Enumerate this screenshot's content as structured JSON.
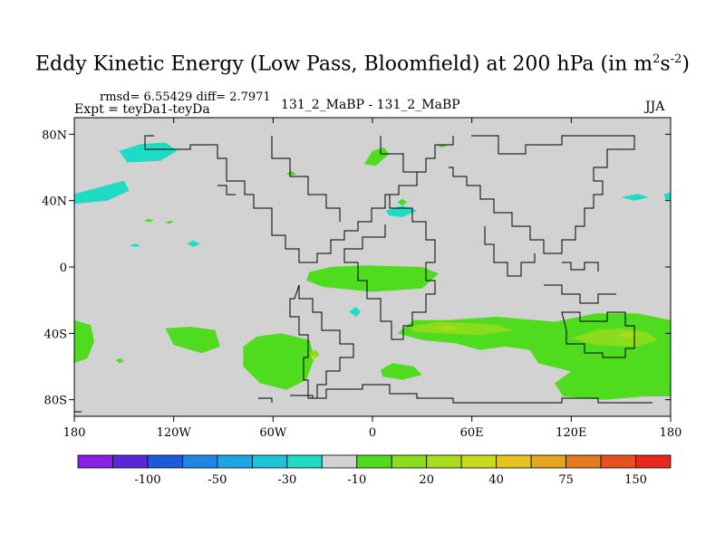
{
  "chart_data": {
    "type": "heatmap",
    "title_main": "Eddy Kinetic Energy (Low Pass, Bloomfield) at 200 hPa (in m",
    "title_sup1": "2",
    "title_mid": "s",
    "title_sup2": "-2",
    "title_end": ")",
    "stats_text": "rmsd= 6.55429 diff= 2.7971",
    "left_label": "Expt = teyDa1-teyDa",
    "center_label": "131_2_MaBP - 131_2_MaBP",
    "right_label": "JJA",
    "x_ticks": [
      {
        "value": -180,
        "label": "180"
      },
      {
        "value": -120,
        "label": "120W"
      },
      {
        "value": -60,
        "label": "60W"
      },
      {
        "value": 0,
        "label": "0"
      },
      {
        "value": 60,
        "label": "60E"
      },
      {
        "value": 120,
        "label": "120E"
      },
      {
        "value": 180,
        "label": "180"
      }
    ],
    "y_ticks": [
      {
        "value": 80,
        "label": "80N"
      },
      {
        "value": 40,
        "label": "40N"
      },
      {
        "value": 0,
        "label": "0"
      },
      {
        "value": -40,
        "label": "40S"
      },
      {
        "value": -80,
        "label": "80S"
      }
    ],
    "xlim": [
      -180,
      180
    ],
    "ylim": [
      -90,
      90
    ],
    "colorbar": {
      "colors": [
        "#8c1ee6",
        "#5a28dc",
        "#1e5adc",
        "#1e87e6",
        "#1ea5e6",
        "#1ec3dc",
        "#1edcc3",
        "#d2d2d2",
        "#50dc1e",
        "#8cdc1e",
        "#aadc1e",
        "#c8dc1e",
        "#e6c31e",
        "#e6a51e",
        "#e6781e",
        "#e6501e",
        "#e6281e"
      ],
      "tick_labels": [
        "-100",
        "-50",
        "-30",
        "-10",
        "20",
        "40",
        "75",
        "150"
      ],
      "tick_boundaries": [
        2,
        4,
        6,
        8,
        10,
        12,
        14,
        16
      ]
    },
    "regions": [
      {
        "name": "teal-north-pacific",
        "color": "#1edcc3",
        "points": [
          [
            -153,
            70
          ],
          [
            -140,
            74
          ],
          [
            -125,
            75
          ],
          [
            -118,
            70
          ],
          [
            -128,
            64
          ],
          [
            -148,
            63
          ]
        ]
      },
      {
        "name": "teal-pacific-40n",
        "color": "#1edcc3",
        "points": [
          [
            -180,
            44
          ],
          [
            -165,
            48
          ],
          [
            -150,
            52
          ],
          [
            -147,
            46
          ],
          [
            -160,
            40
          ],
          [
            -180,
            38
          ]
        ]
      },
      {
        "name": "green-greenland",
        "color": "#50dc1e",
        "points": [
          [
            -5,
            62
          ],
          [
            0,
            70
          ],
          [
            7,
            72
          ],
          [
            10,
            68
          ],
          [
            2,
            61
          ]
        ]
      },
      {
        "name": "green-arctic-small",
        "color": "#50dc1e",
        "points": [
          [
            39,
            73
          ],
          [
            42,
            74
          ],
          [
            45,
            73
          ],
          [
            42,
            72
          ]
        ]
      },
      {
        "name": "green-north-atlantic-small",
        "color": "#50dc1e",
        "points": [
          [
            -52,
            56
          ],
          [
            -49,
            58
          ],
          [
            -46,
            56
          ],
          [
            -49,
            55
          ]
        ]
      },
      {
        "name": "teal-mediterranean",
        "color": "#1edcc3",
        "points": [
          [
            8,
            34
          ],
          [
            18,
            37
          ],
          [
            27,
            34
          ],
          [
            18,
            30
          ],
          [
            10,
            31
          ]
        ]
      },
      {
        "name": "green-mediterranean-small",
        "color": "#50dc1e",
        "points": [
          [
            15,
            39
          ],
          [
            18,
            41
          ],
          [
            21,
            39
          ],
          [
            18,
            37
          ]
        ]
      },
      {
        "name": "teal-east-asia-40n",
        "color": "#1edcc3",
        "points": [
          [
            150,
            42
          ],
          [
            160,
            44
          ],
          [
            167,
            42
          ],
          [
            158,
            40
          ]
        ]
      },
      {
        "name": "teal-east-edge",
        "color": "#1edcc3",
        "points": [
          [
            176,
            44
          ],
          [
            180,
            45
          ],
          [
            180,
            40
          ],
          [
            177,
            40
          ]
        ]
      },
      {
        "name": "green-pacific-small-1",
        "color": "#50dc1e",
        "points": [
          [
            -138,
            28
          ],
          [
            -135,
            29
          ],
          [
            -132,
            28
          ],
          [
            -135,
            27
          ]
        ]
      },
      {
        "name": "green-pacific-small-2",
        "color": "#50dc1e",
        "points": [
          [
            -125,
            27
          ],
          [
            -122,
            28
          ],
          [
            -120,
            27
          ],
          [
            -123,
            26
          ]
        ]
      },
      {
        "name": "teal-pacific-small-1",
        "color": "#1edcc3",
        "points": [
          [
            -147,
            13
          ],
          [
            -143,
            14
          ],
          [
            -140,
            13
          ],
          [
            -143,
            12
          ]
        ]
      },
      {
        "name": "teal-pacific-small-2",
        "color": "#1edcc3",
        "points": [
          [
            -112,
            14
          ],
          [
            -108,
            16
          ],
          [
            -104,
            14
          ],
          [
            -108,
            12
          ]
        ]
      },
      {
        "name": "green-equator-atlantic",
        "color": "#50dc1e",
        "points": [
          [
            -38,
            -3
          ],
          [
            -25,
            0
          ],
          [
            -5,
            1
          ],
          [
            30,
            0
          ],
          [
            40,
            -4
          ],
          [
            30,
            -13
          ],
          [
            0,
            -15
          ],
          [
            -30,
            -12
          ],
          [
            -40,
            -8
          ]
        ]
      },
      {
        "name": "teal-south-atlantic-small",
        "color": "#1edcc3",
        "points": [
          [
            -14,
            -27
          ],
          [
            -10,
            -24
          ],
          [
            -7,
            -27
          ],
          [
            -10,
            -30
          ]
        ]
      },
      {
        "name": "green-south-pacific-west",
        "color": "#50dc1e",
        "points": [
          [
            -180,
            -32
          ],
          [
            -170,
            -35
          ],
          [
            -168,
            -45
          ],
          [
            -172,
            -55
          ],
          [
            -180,
            -58
          ]
        ]
      },
      {
        "name": "green-south-pacific-mid",
        "color": "#50dc1e",
        "points": [
          [
            -125,
            -37
          ],
          [
            -110,
            -36
          ],
          [
            -95,
            -38
          ],
          [
            -92,
            -48
          ],
          [
            -103,
            -52
          ],
          [
            -120,
            -47
          ]
        ]
      },
      {
        "name": "green-south-pacific-small",
        "color": "#50dc1e",
        "points": [
          [
            -155,
            -56
          ],
          [
            -152,
            -55
          ],
          [
            -150,
            -57
          ],
          [
            -153,
            -58
          ]
        ]
      },
      {
        "name": "green-south-america",
        "color": "#50dc1e",
        "points": [
          [
            -78,
            -48
          ],
          [
            -70,
            -42
          ],
          [
            -55,
            -40
          ],
          [
            -38,
            -44
          ],
          [
            -35,
            -55
          ],
          [
            -40,
            -68
          ],
          [
            -52,
            -74
          ],
          [
            -68,
            -70
          ],
          [
            -78,
            -60
          ]
        ]
      },
      {
        "name": "green-south-atlantic",
        "color": "#50dc1e",
        "points": [
          [
            5,
            -62
          ],
          [
            12,
            -58
          ],
          [
            25,
            -60
          ],
          [
            30,
            -65
          ],
          [
            18,
            -68
          ],
          [
            6,
            -66
          ]
        ]
      },
      {
        "name": "green-southern-ocean",
        "color": "#50dc1e",
        "points": [
          [
            15,
            -40
          ],
          [
            25,
            -32
          ],
          [
            45,
            -32
          ],
          [
            75,
            -30
          ],
          [
            110,
            -33
          ],
          [
            135,
            -28
          ],
          [
            160,
            -28
          ],
          [
            180,
            -32
          ],
          [
            180,
            -78
          ],
          [
            165,
            -78
          ],
          [
            140,
            -80
          ],
          [
            115,
            -78
          ],
          [
            110,
            -70
          ],
          [
            120,
            -63
          ],
          [
            100,
            -58
          ],
          [
            95,
            -50
          ],
          [
            80,
            -48
          ],
          [
            65,
            -50
          ],
          [
            50,
            -46
          ],
          [
            30,
            -44
          ]
        ]
      },
      {
        "name": "yellow-green-southern-ocean",
        "color": "#8cdc1e",
        "points": [
          [
            22,
            -36
          ],
          [
            40,
            -33
          ],
          [
            60,
            -34
          ],
          [
            75,
            -35
          ],
          [
            85,
            -38
          ],
          [
            65,
            -41
          ],
          [
            40,
            -40
          ],
          [
            25,
            -39
          ]
        ]
      },
      {
        "name": "yellow-green-southern-ocean-east",
        "color": "#8cdc1e",
        "points": [
          [
            120,
            -43
          ],
          [
            135,
            -38
          ],
          [
            150,
            -37
          ],
          [
            165,
            -39
          ],
          [
            172,
            -44
          ],
          [
            160,
            -48
          ],
          [
            135,
            -47
          ]
        ]
      },
      {
        "name": "yellow-green-south-america",
        "color": "#8cdc1e",
        "points": [
          [
            -38,
            -52
          ],
          [
            -34,
            -50
          ],
          [
            -32,
            -53
          ],
          [
            -36,
            -56
          ]
        ]
      },
      {
        "name": "yellow-southern-ocean",
        "color": "#aadc1e",
        "points": [
          [
            38,
            -37
          ],
          [
            45,
            -35
          ],
          [
            52,
            -37
          ],
          [
            45,
            -39
          ]
        ]
      },
      {
        "name": "yellow-southern-ocean-east",
        "color": "#aadc1e",
        "points": [
          [
            148,
            -41
          ],
          [
            155,
            -39
          ],
          [
            162,
            -41
          ],
          [
            155,
            -43
          ]
        ]
      },
      {
        "name": "yellow-south-america-dot",
        "color": "#c8dc1e",
        "points": [
          [
            -37,
            -54
          ],
          [
            -35,
            -53
          ],
          [
            -34,
            -55
          ],
          [
            -36,
            -56
          ]
        ]
      }
    ]
  }
}
